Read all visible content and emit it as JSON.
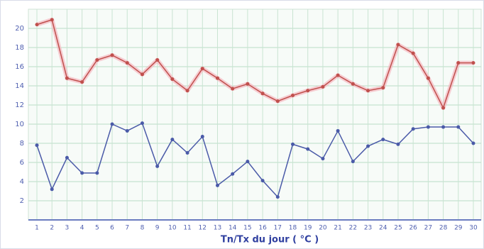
{
  "chart_data": {
    "type": "line",
    "x_label": "Tn/Tx du jour ( °C )",
    "categories": [
      "1",
      "2",
      "3",
      "4",
      "5",
      "6",
      "7",
      "8",
      "9",
      "10",
      "11",
      "12",
      "13",
      "14",
      "15",
      "16",
      "17",
      "18",
      "19",
      "20",
      "21",
      "22",
      "23",
      "24",
      "25",
      "26",
      "27",
      "28",
      "29",
      "30"
    ],
    "series": [
      {
        "name": "Tx",
        "color": "#c0504d",
        "values": [
          20.4,
          20.9,
          14.8,
          14.4,
          16.7,
          17.2,
          16.4,
          15.2,
          16.7,
          14.7,
          13.5,
          15.8,
          14.8,
          13.7,
          14.2,
          13.2,
          12.4,
          13.0,
          13.5,
          13.9,
          15.1,
          14.2,
          13.5,
          13.8,
          18.3,
          17.4,
          14.8,
          11.7,
          16.4,
          16.4
        ]
      },
      {
        "name": "Tn",
        "color": "#4a5aa8",
        "values": [
          7.8,
          3.2,
          6.5,
          4.9,
          4.9,
          10.0,
          9.3,
          10.1,
          5.6,
          8.4,
          7.0,
          8.7,
          3.6,
          4.8,
          6.1,
          4.1,
          2.4,
          7.9,
          7.4,
          6.4,
          9.3,
          6.1,
          7.7,
          8.4,
          7.9,
          9.5,
          9.7,
          9.7,
          9.7,
          8.0
        ]
      }
    ],
    "ylim": [
      0,
      22
    ],
    "yticks": [
      2,
      4,
      6,
      8,
      10,
      12,
      14,
      16,
      18,
      20
    ],
    "grid": true
  }
}
